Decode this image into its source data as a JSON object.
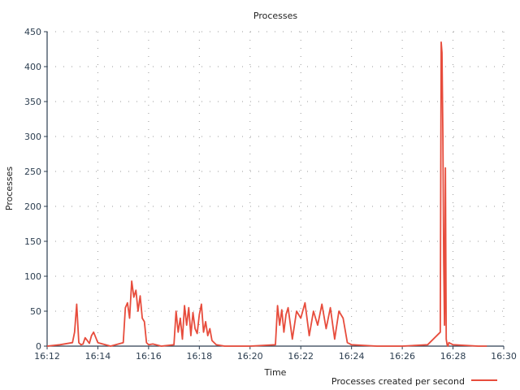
{
  "chart_data": {
    "type": "line",
    "title": "Processes",
    "xlabel": "Time",
    "ylabel": "Processes",
    "ylim": [
      0,
      450
    ],
    "xlim_minutes": [
      0,
      18
    ],
    "x_ticks": [
      "16:12",
      "16:14",
      "16:16",
      "16:18",
      "16:20",
      "16:22",
      "16:24",
      "16:26",
      "16:28",
      "16:30"
    ],
    "y_ticks": [
      0,
      50,
      100,
      150,
      200,
      250,
      300,
      350,
      400,
      450
    ],
    "grid": true,
    "legend_position": "bottom-right",
    "colors": {
      "series": "#e74c3c",
      "axis": "#2c3e50"
    },
    "series": [
      {
        "name": "Processes created per second",
        "x": [
          "16:12",
          "16:12:30",
          "16:13",
          "16:13:05",
          "16:13:10",
          "16:13:15",
          "16:13:20",
          "16:13:25",
          "16:13:30",
          "16:13:35",
          "16:13:40",
          "16:13:45",
          "16:13:50",
          "16:14",
          "16:14:30",
          "16:15",
          "16:15:05",
          "16:15:10",
          "16:15:15",
          "16:15:20",
          "16:15:25",
          "16:15:30",
          "16:15:35",
          "16:15:40",
          "16:15:45",
          "16:15:50",
          "16:15:55",
          "16:16",
          "16:16:10",
          "16:16:30",
          "16:17",
          "16:17:05",
          "16:17:10",
          "16:17:15",
          "16:17:20",
          "16:17:25",
          "16:17:30",
          "16:17:35",
          "16:17:40",
          "16:17:45",
          "16:17:50",
          "16:17:55",
          "16:18",
          "16:18:05",
          "16:18:10",
          "16:18:15",
          "16:18:20",
          "16:18:25",
          "16:18:30",
          "16:18:40",
          "16:19",
          "16:20",
          "16:21",
          "16:21:05",
          "16:21:10",
          "16:21:15",
          "16:21:20",
          "16:21:25",
          "16:21:30",
          "16:21:40",
          "16:21:50",
          "16:22",
          "16:22:10",
          "16:22:20",
          "16:22:30",
          "16:22:40",
          "16:22:50",
          "16:23",
          "16:23:10",
          "16:23:20",
          "16:23:30",
          "16:23:40",
          "16:23:50",
          "16:24",
          "16:25",
          "16:26",
          "16:27",
          "16:27:30",
          "16:27:32",
          "16:27:34",
          "16:27:36",
          "16:27:38",
          "16:27:40",
          "16:27:42",
          "16:27:44",
          "16:27:46",
          "16:27:48",
          "16:27:50",
          "16:28",
          "16:29",
          "16:29:20"
        ],
        "values": [
          0,
          2,
          5,
          20,
          60,
          5,
          2,
          3,
          12,
          8,
          4,
          15,
          20,
          5,
          0,
          5,
          55,
          62,
          40,
          93,
          70,
          80,
          50,
          72,
          40,
          35,
          5,
          2,
          3,
          0,
          2,
          50,
          20,
          40,
          10,
          58,
          30,
          55,
          15,
          48,
          25,
          18,
          45,
          60,
          20,
          35,
          15,
          25,
          8,
          2,
          0,
          0,
          2,
          58,
          30,
          52,
          20,
          45,
          55,
          10,
          50,
          40,
          62,
          15,
          50,
          30,
          60,
          25,
          55,
          10,
          50,
          40,
          5,
          2,
          0,
          0,
          2,
          20,
          435,
          420,
          300,
          120,
          30,
          255,
          10,
          2,
          0,
          5,
          2,
          0,
          0
        ]
      }
    ]
  }
}
